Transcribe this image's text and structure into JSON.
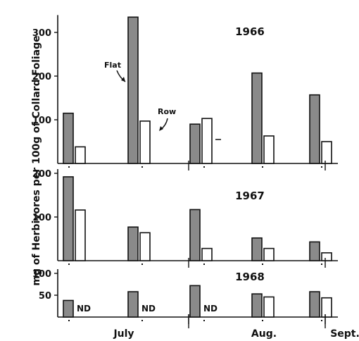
{
  "chart_data": [
    {
      "type": "bar",
      "title": "1966",
      "ylim": [
        0,
        330
      ],
      "yticks": [
        100,
        200,
        300
      ],
      "series_names": [
        "Flat",
        "Row"
      ],
      "groups": [
        {
          "Flat": 115,
          "Row": 38
        },
        {
          "Flat": 335,
          "Row": 97
        },
        {
          "Flat": 90,
          "Row": 103
        },
        {
          "Flat": 207,
          "Row": 63
        },
        {
          "Flat": 157,
          "Row": 50
        }
      ],
      "annotations": [
        "Flat",
        "Row"
      ]
    },
    {
      "type": "bar",
      "title": "1967",
      "ylim": [
        0,
        200
      ],
      "yticks": [
        100,
        200
      ],
      "groups": [
        {
          "Flat": 192,
          "Row": 116
        },
        {
          "Flat": 77,
          "Row": 64
        },
        {
          "Flat": 117,
          "Row": 28
        },
        {
          "Flat": 52,
          "Row": 28
        },
        {
          "Flat": 43,
          "Row": 18
        }
      ]
    },
    {
      "type": "bar",
      "title": "1968",
      "ylim": [
        0,
        100
      ],
      "yticks": [
        50,
        100
      ],
      "nd_label": "ND",
      "groups": [
        {
          "Flat": 38,
          "Row": null
        },
        {
          "Flat": 58,
          "Row": null
        },
        {
          "Flat": 72,
          "Row": null
        },
        {
          "Flat": 53,
          "Row": 46
        },
        {
          "Flat": 58,
          "Row": 44
        }
      ]
    }
  ],
  "ylabel": "mg of Herbivores per 100g of Collard Foliage",
  "months": [
    "July",
    "Aug.",
    "Sept."
  ],
  "colors": {
    "flat": "#8a8a8a",
    "row": "#ffffff",
    "stroke": "#111111"
  }
}
